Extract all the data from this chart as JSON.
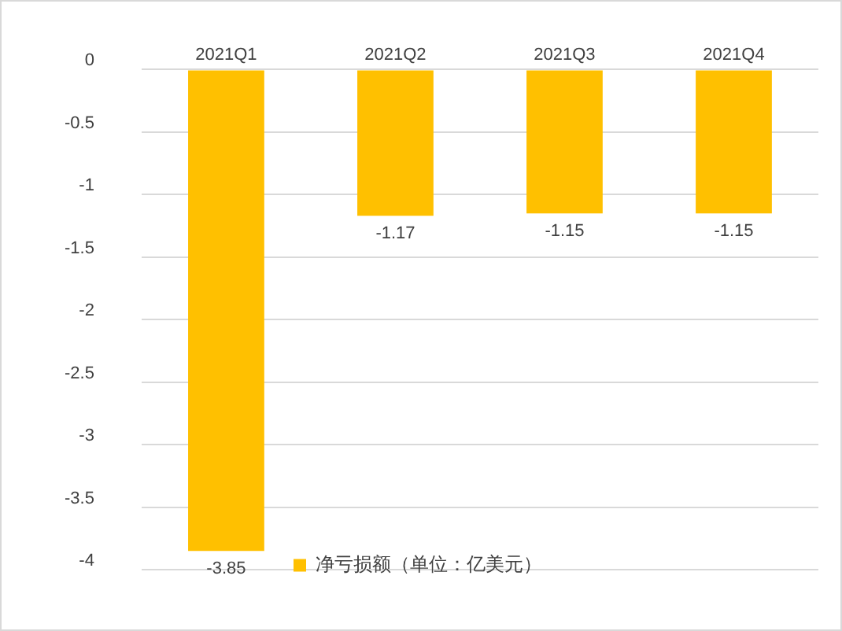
{
  "chart_data": {
    "type": "bar",
    "categories": [
      "2021Q1",
      "2021Q2",
      "2021Q3",
      "2021Q4"
    ],
    "series": [
      {
        "name": "净亏损额（单位：亿美元）",
        "color": "#ffc000",
        "values": [
          -3.85,
          -1.17,
          -1.15,
          -1.15
        ]
      }
    ],
    "ylim": [
      -4,
      0
    ],
    "yticks": [
      -4,
      -3.5,
      -3,
      -2.5,
      -2,
      -1.5,
      -1,
      -0.5,
      0
    ],
    "grid": "y",
    "legend": "bottom",
    "data_labels": true
  }
}
